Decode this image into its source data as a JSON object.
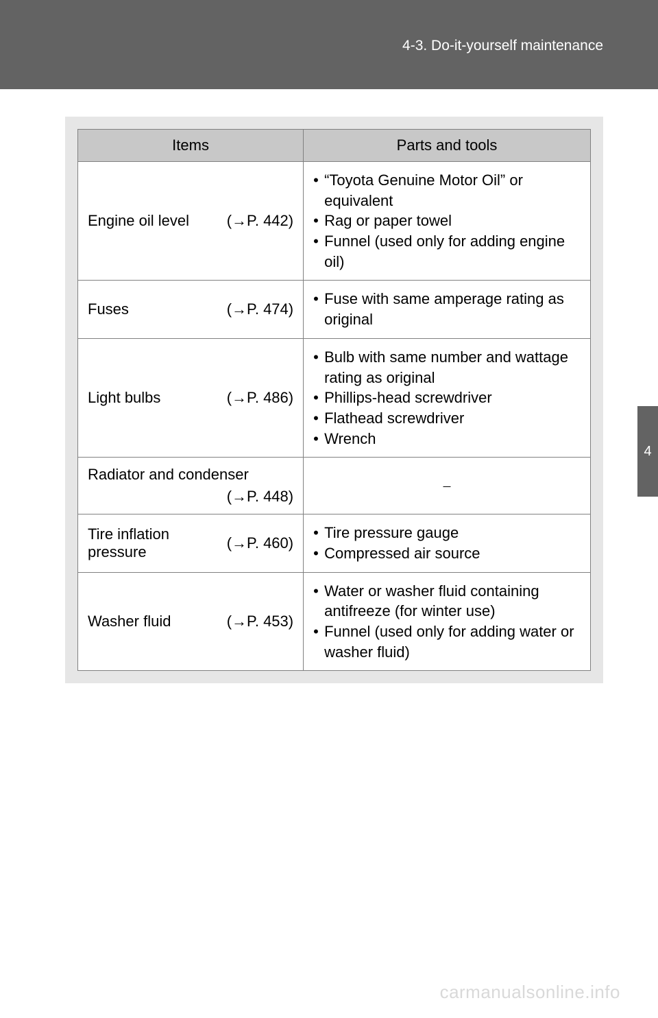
{
  "header": {
    "section": "4-3. Do-it-yourself maintenance"
  },
  "table": {
    "columns": [
      "Items",
      "Parts and tools"
    ],
    "rows": [
      {
        "item": "Engine oil level",
        "ref": "(→P. 442)",
        "stacked": false,
        "parts": [
          "“Toyota Genuine Motor Oil” or equivalent",
          "Rag or paper towel",
          "Funnel (used only for adding engine oil)"
        ]
      },
      {
        "item": "Fuses",
        "ref": "(→P. 474)",
        "stacked": false,
        "parts": [
          "Fuse with same amperage rating as original"
        ]
      },
      {
        "item": "Light bulbs",
        "ref": "(→P. 486)",
        "stacked": false,
        "parts": [
          "Bulb with same number and wattage rating as original",
          "Phillips-head screwdriver",
          "Flathead screwdriver",
          "Wrench"
        ]
      },
      {
        "item": "Radiator and condenser",
        "ref": "(→P. 448)",
        "stacked": true,
        "parts": null,
        "empty_marker": "⎯"
      },
      {
        "item": "Tire inflation pressure",
        "ref": "(→P. 460)",
        "stacked": false,
        "parts": [
          "Tire pressure gauge",
          "Compressed air source"
        ]
      },
      {
        "item": "Washer fluid",
        "ref": "(→P. 453)",
        "stacked": false,
        "parts": [
          "Water or washer fluid containing antifreeze (for winter use)",
          "Funnel (used only for adding water or washer fluid)"
        ]
      }
    ]
  },
  "side_tab": {
    "label": "4"
  },
  "watermark": "carmanualsonline.info"
}
